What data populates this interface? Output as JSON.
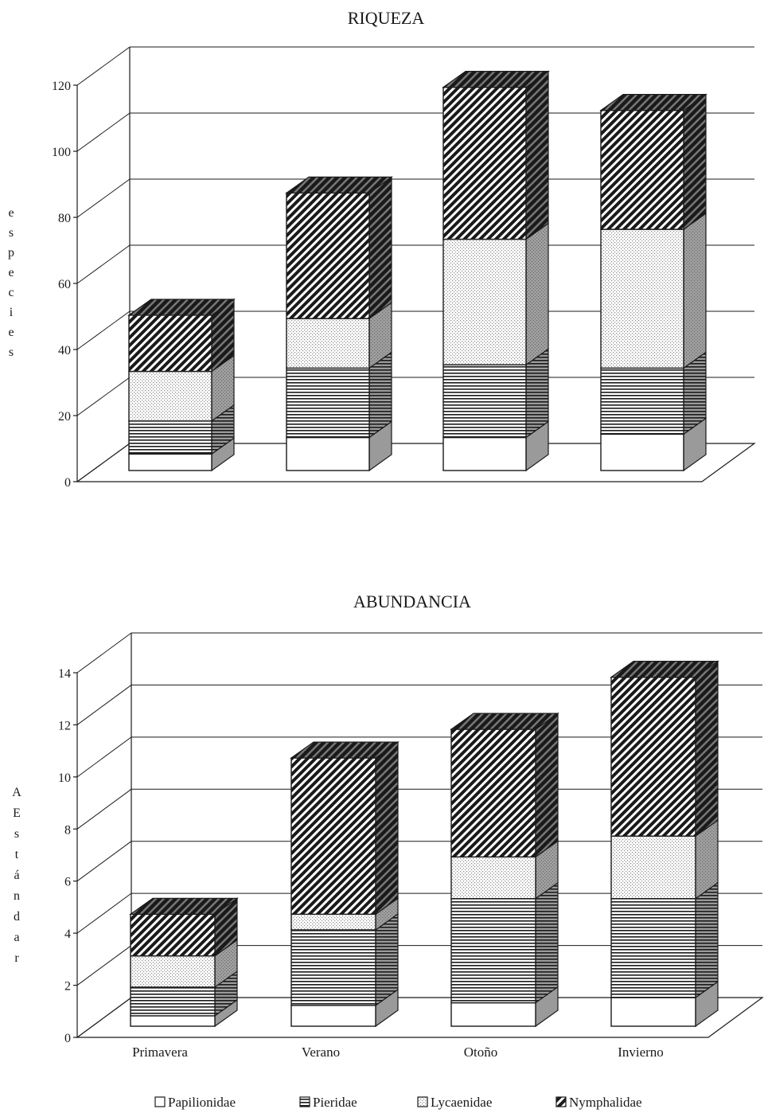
{
  "chart_data": [
    {
      "type": "bar",
      "stacked": true,
      "title": "RIQUEZA",
      "xlabel": "",
      "ylabel": "especies",
      "ylim": [
        0,
        120
      ],
      "yticks": [
        0,
        20,
        40,
        60,
        80,
        100,
        120
      ],
      "grid": true,
      "categories": [
        "Primavera",
        "Verano",
        "Otoño",
        "Invierno"
      ],
      "show_category_labels": false,
      "series": [
        {
          "name": "Papilionidae",
          "values": [
            5,
            10,
            10,
            11
          ]
        },
        {
          "name": "Pieridae",
          "values": [
            10,
            21,
            22,
            20
          ]
        },
        {
          "name": "Lycaenidae",
          "values": [
            15,
            15,
            38,
            42
          ]
        },
        {
          "name": "Nymphalidae",
          "values": [
            17,
            38,
            46,
            36
          ]
        }
      ]
    },
    {
      "type": "bar",
      "stacked": true,
      "title": "ABUNDANCIA",
      "xlabel": "",
      "ylabel": "AEstándar",
      "ylim": [
        0,
        14
      ],
      "yticks": [
        0,
        2,
        4,
        6,
        8,
        10,
        12,
        14
      ],
      "grid": true,
      "categories": [
        "Primavera",
        "Verano",
        "Otoño",
        "Invierno"
      ],
      "show_category_labels": true,
      "series": [
        {
          "name": "Papilionidae",
          "values": [
            0.4,
            0.8,
            0.9,
            1.1
          ]
        },
        {
          "name": "Pieridae",
          "values": [
            1.1,
            2.9,
            4.0,
            3.8
          ]
        },
        {
          "name": "Lycaenidae",
          "values": [
            1.2,
            0.6,
            1.6,
            2.4
          ]
        },
        {
          "name": "Nymphalidae",
          "values": [
            1.6,
            6.0,
            4.9,
            6.1
          ]
        }
      ]
    }
  ],
  "legend": {
    "placement": "bottom",
    "items": [
      {
        "name": "Papilionidae",
        "pattern": "blank"
      },
      {
        "name": "Pieridae",
        "pattern": "horizontal"
      },
      {
        "name": "Lycaenidae",
        "pattern": "dotted"
      },
      {
        "name": "Nymphalidae",
        "pattern": "diagonal"
      }
    ]
  },
  "colors": {
    "ink": "#1a1a1a",
    "face": "#ffffff",
    "side": "#9a9a9a",
    "dots": "#8a8a8a"
  }
}
